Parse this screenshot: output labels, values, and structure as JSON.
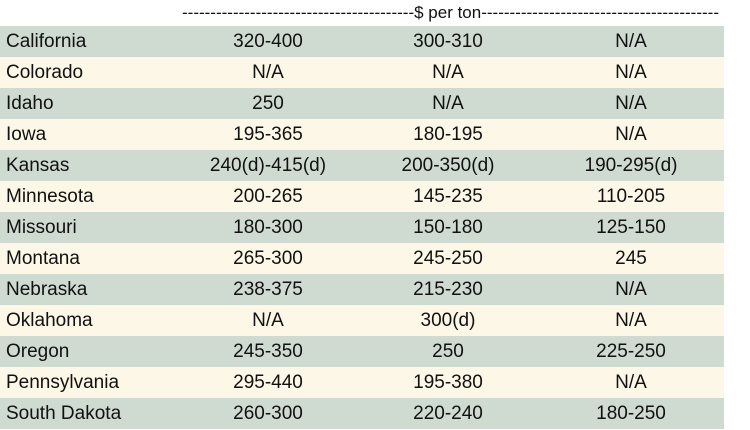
{
  "header": {
    "unit_label": "-----------------------------------------$ per ton------------------------------------------"
  },
  "colors": {
    "shade_row": "#cfdad1",
    "light_row": "#fcf7e6",
    "text": "#111111"
  },
  "rows": [
    {
      "state": "California",
      "v1": "320-400",
      "v2": "300-310",
      "v3": "N/A"
    },
    {
      "state": "Colorado",
      "v1": "N/A",
      "v2": "N/A",
      "v3": "N/A"
    },
    {
      "state": "Idaho",
      "v1": "250",
      "v2": "N/A",
      "v3": "N/A"
    },
    {
      "state": "Iowa",
      "v1": "195-365",
      "v2": "180-195",
      "v3": "N/A"
    },
    {
      "state": "Kansas",
      "v1": "240(d)-415(d)",
      "v2": "200-350(d)",
      "v3": "190-295(d)"
    },
    {
      "state": "Minnesota",
      "v1": "200-265",
      "v2": "145-235",
      "v3": "110-205"
    },
    {
      "state": "Missouri",
      "v1": "180-300",
      "v2": "150-180",
      "v3": "125-150"
    },
    {
      "state": "Montana",
      "v1": "265-300",
      "v2": "245-250",
      "v3": "245"
    },
    {
      "state": "Nebraska",
      "v1": "238-375",
      "v2": "215-230",
      "v3": "N/A"
    },
    {
      "state": "Oklahoma",
      "v1": "N/A",
      "v2": "300(d)",
      "v3": "N/A"
    },
    {
      "state": "Oregon",
      "v1": "245-350",
      "v2": "250",
      "v3": "225-250"
    },
    {
      "state": "Pennsylvania",
      "v1": "295-440",
      "v2": "195-380",
      "v3": "N/A"
    },
    {
      "state": "South Dakota",
      "v1": "260-300",
      "v2": "220-240",
      "v3": "180-250"
    }
  ]
}
